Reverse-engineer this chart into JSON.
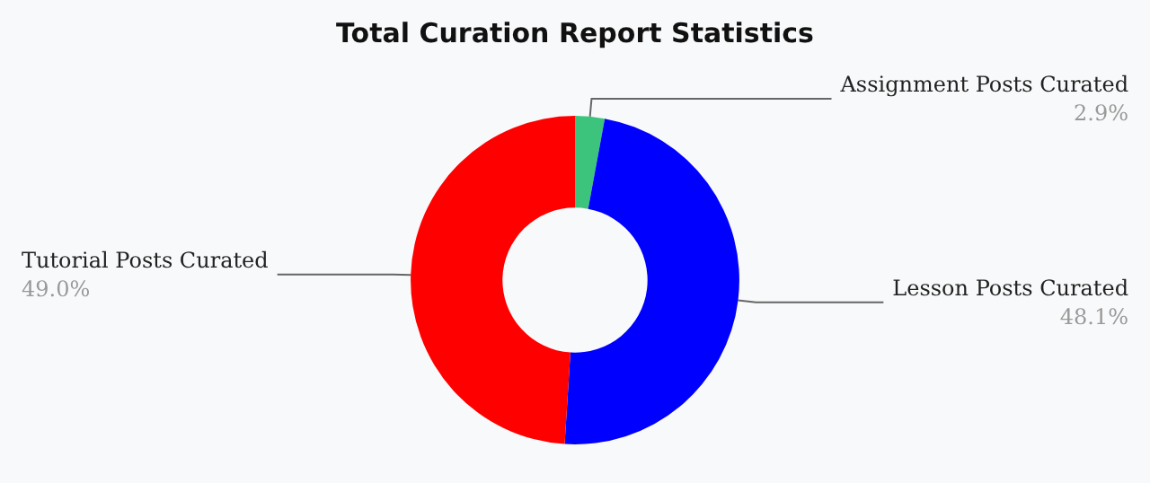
{
  "chart_data": {
    "type": "donut",
    "title": "Total Curation Report Statistics",
    "categories": [
      "Assignment Posts Curated",
      "Lesson Posts Curated",
      "Tutorial Posts Curated"
    ],
    "values": [
      2.9,
      48.1,
      49.0
    ],
    "value_labels": [
      "2.9%",
      "48.1%",
      "49.0%"
    ],
    "colors": [
      "#3cc47c",
      "#0000ff",
      "#ff0000"
    ],
    "legend": false
  }
}
